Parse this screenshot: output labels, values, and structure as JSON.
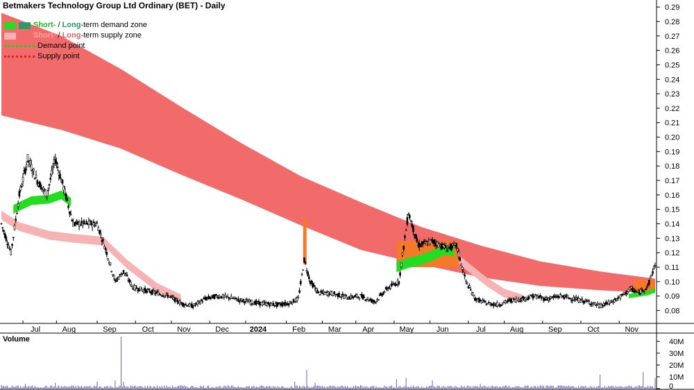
{
  "title": "Betmakers Technology Group Ltd Ordinary (BET) - Daily",
  "legend": {
    "demand_zone": {
      "short": "Short-",
      "sep": " / ",
      "long": "Long-",
      "rest": "term demand zone",
      "short_color": "#22dd22",
      "long_color": "#2e9a6a"
    },
    "supply_zone": {
      "short": "Short-",
      "sep": " / ",
      "long": "Long-",
      "rest": "term supply zone",
      "short_color": "#f7b3b3",
      "long_color": "#f26b6b"
    },
    "demand_point": "Demand point",
    "supply_point": "Supply point",
    "demand_point_color": "#22cc22",
    "supply_point_color": "#dd2222"
  },
  "volume_label": "Volume",
  "chart_data": [
    {
      "type": "candlestick",
      "title": "Betmakers Technology Group Ltd Ordinary (BET) - Daily",
      "y_ticks": [
        "0.29",
        "0.28",
        "0.27",
        "0.26",
        "0.25",
        "0.24",
        "0.23",
        "0.22",
        "0.21",
        "0.20",
        "0.19",
        "0.18",
        "0.17",
        "0.16",
        "0.15",
        "0.14",
        "0.13",
        "0.12",
        "0.11",
        "0.10",
        "0.09",
        "0.08"
      ],
      "ylim": [
        0.073,
        0.292
      ],
      "x_ticks": [
        "Jul",
        "Aug",
        "Sep",
        "Oct",
        "Nov",
        "Dec",
        "2024",
        "Feb",
        "Mar",
        "Apr",
        "May",
        "Jun",
        "Jul",
        "Aug",
        "Sep",
        "Oct",
        "Nov"
      ],
      "price_anchors": [
        [
          0,
          0.14
        ],
        [
          8,
          0.12
        ],
        [
          15,
          0.16
        ],
        [
          22,
          0.185
        ],
        [
          30,
          0.17
        ],
        [
          38,
          0.16
        ],
        [
          45,
          0.185
        ],
        [
          52,
          0.165
        ],
        [
          60,
          0.14
        ],
        [
          70,
          0.14
        ],
        [
          80,
          0.14
        ],
        [
          88,
          0.12
        ],
        [
          95,
          0.1
        ],
        [
          102,
          0.107
        ],
        [
          110,
          0.096
        ],
        [
          125,
          0.093
        ],
        [
          140,
          0.09
        ],
        [
          150,
          0.085
        ],
        [
          160,
          0.083
        ],
        [
          170,
          0.088
        ],
        [
          180,
          0.09
        ],
        [
          190,
          0.089
        ],
        [
          200,
          0.087
        ],
        [
          215,
          0.085
        ],
        [
          230,
          0.084
        ],
        [
          240,
          0.085
        ],
        [
          248,
          0.088
        ],
        [
          253,
          0.115
        ],
        [
          258,
          0.1
        ],
        [
          265,
          0.092
        ],
        [
          275,
          0.092
        ],
        [
          290,
          0.089
        ],
        [
          300,
          0.09
        ],
        [
          312,
          0.086
        ],
        [
          322,
          0.095
        ],
        [
          332,
          0.1
        ],
        [
          340,
          0.148
        ],
        [
          348,
          0.125
        ],
        [
          360,
          0.128
        ],
        [
          372,
          0.123
        ],
        [
          380,
          0.125
        ],
        [
          388,
          0.1
        ],
        [
          396,
          0.088
        ],
        [
          405,
          0.085
        ],
        [
          415,
          0.084
        ],
        [
          425,
          0.087
        ],
        [
          435,
          0.088
        ],
        [
          445,
          0.09
        ],
        [
          455,
          0.088
        ],
        [
          468,
          0.09
        ],
        [
          478,
          0.088
        ],
        [
          490,
          0.086
        ],
        [
          500,
          0.083
        ],
        [
          510,
          0.086
        ],
        [
          518,
          0.09
        ],
        [
          526,
          0.095
        ],
        [
          532,
          0.092
        ],
        [
          540,
          0.097
        ],
        [
          546,
          0.112
        ]
      ],
      "long_supply_zone": {
        "upper": [
          [
            0,
            0.286
          ],
          [
            50,
            0.27
          ],
          [
            100,
            0.247
          ],
          [
            150,
            0.221
          ],
          [
            200,
            0.196
          ],
          [
            250,
            0.173
          ],
          [
            300,
            0.155
          ],
          [
            350,
            0.138
          ],
          [
            400,
            0.125
          ],
          [
            450,
            0.114
          ],
          [
            500,
            0.107
          ],
          [
            546,
            0.102
          ]
        ],
        "lower": [
          [
            0,
            0.215
          ],
          [
            50,
            0.205
          ],
          [
            100,
            0.192
          ],
          [
            150,
            0.174
          ],
          [
            200,
            0.157
          ],
          [
            250,
            0.139
          ],
          [
            300,
            0.122
          ],
          [
            350,
            0.112
          ],
          [
            400,
            0.103
          ],
          [
            450,
            0.097
          ],
          [
            500,
            0.094
          ],
          [
            546,
            0.092
          ]
        ]
      },
      "short_supply_zone": [
        [
          0,
          0.146
        ],
        [
          15,
          0.138
        ],
        [
          40,
          0.132
        ],
        [
          60,
          0.13
        ],
        [
          85,
          0.128
        ],
        [
          105,
          0.112
        ],
        [
          130,
          0.096
        ],
        [
          150,
          0.088
        ]
      ],
      "short_demand_zone": [
        [
          10,
          0.15
        ],
        [
          25,
          0.156
        ],
        [
          40,
          0.157
        ],
        [
          50,
          0.16
        ],
        [
          58,
          0.155
        ]
      ],
      "short_supply_zone_2": [
        [
          375,
          0.12
        ],
        [
          390,
          0.11
        ],
        [
          405,
          0.1
        ],
        [
          420,
          0.092
        ],
        [
          435,
          0.088
        ]
      ],
      "short_demand_zone_2": [
        [
          330,
          0.11
        ],
        [
          340,
          0.113
        ],
        [
          350,
          0.115
        ],
        [
          360,
          0.118
        ],
        [
          370,
          0.122
        ],
        [
          378,
          0.121
        ]
      ],
      "short_demand_zone_3": [
        [
          524,
          0.09
        ],
        [
          532,
          0.091
        ],
        [
          540,
          0.092
        ],
        [
          546,
          0.094
        ]
      ],
      "volume_ticks": [
        "40M",
        "30M",
        "20M",
        "10M",
        "0"
      ],
      "volume_ylim": [
        0,
        47
      ],
      "volume_spikes": [
        [
          0,
          3
        ],
        [
          20,
          4
        ],
        [
          45,
          5
        ],
        [
          80,
          6
        ],
        [
          95,
          7
        ],
        [
          100,
          44
        ],
        [
          102,
          6
        ],
        [
          150,
          3
        ],
        [
          245,
          6
        ],
        [
          255,
          16
        ],
        [
          262,
          5
        ],
        [
          300,
          3
        ],
        [
          330,
          8
        ],
        [
          338,
          9
        ],
        [
          360,
          7
        ],
        [
          400,
          4
        ],
        [
          450,
          3
        ],
        [
          500,
          12
        ],
        [
          536,
          14
        ],
        [
          546,
          9
        ]
      ]
    }
  ]
}
